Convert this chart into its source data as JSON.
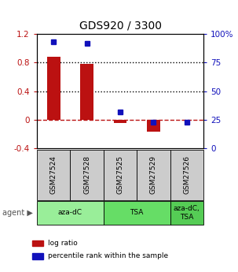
{
  "title": "GDS920 / 3300",
  "samples": [
    "GSM27524",
    "GSM27528",
    "GSM27525",
    "GSM27529",
    "GSM27526"
  ],
  "log_ratios": [
    0.88,
    0.78,
    -0.05,
    -0.17,
    0.0
  ],
  "percentile_ranks": [
    93,
    92,
    32,
    23,
    23
  ],
  "agents": [
    {
      "label": "aza-dC",
      "samples": [
        "GSM27524",
        "GSM27528"
      ],
      "color": "#99ee99"
    },
    {
      "label": "TSA",
      "samples": [
        "GSM27525",
        "GSM27529"
      ],
      "color": "#66dd66"
    },
    {
      "label": "aza-dC,\nTSA",
      "samples": [
        "GSM27526"
      ],
      "color": "#55cc55"
    }
  ],
  "ylim_left": [
    -0.4,
    1.2
  ],
  "ylim_right": [
    0,
    100
  ],
  "yticks_left": [
    -0.4,
    0.0,
    0.4,
    0.8,
    1.2
  ],
  "ytick_labels_left": [
    "-0.4",
    "0",
    "0.4",
    "0.8",
    "1.2"
  ],
  "yticks_right": [
    0,
    25,
    50,
    75,
    100
  ],
  "ytick_labels_right": [
    "0",
    "25",
    "50",
    "75",
    "100%"
  ],
  "hlines_black": [
    0.4,
    0.8
  ],
  "hline_red": 0.0,
  "bar_color_red": "#bb1111",
  "marker_color_blue": "#1111bb",
  "background_color": "#ffffff",
  "sample_box_color": "#cccccc",
  "legend_items": [
    {
      "color": "#bb1111",
      "label": "log ratio"
    },
    {
      "color": "#1111bb",
      "label": "percentile rank within the sample"
    }
  ]
}
